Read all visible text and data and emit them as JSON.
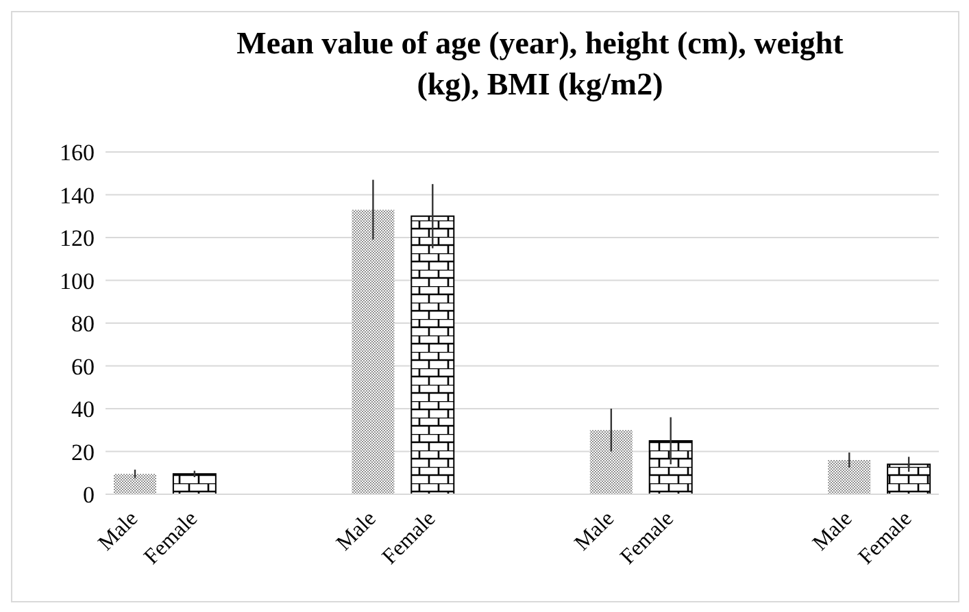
{
  "chart_data": {
    "type": "bar",
    "title": "Mean value of age (year), height (cm), weight (kg), BMI (kg/m2)",
    "categories": [
      "Male",
      "Female",
      null,
      null,
      "Male",
      "Female",
      null,
      null,
      "Male",
      "Female",
      null,
      null,
      "Male",
      "Female"
    ],
    "values": [
      9.5,
      9.5,
      null,
      null,
      133,
      130,
      null,
      null,
      30,
      25,
      null,
      null,
      16,
      14
    ],
    "errors": [
      2,
      1.5,
      null,
      null,
      14,
      15,
      null,
      null,
      10,
      11,
      null,
      null,
      3.5,
      3.5
    ],
    "colors": [
      "#909090",
      "#000000",
      null,
      null,
      "#909090",
      "#000000",
      null,
      null,
      "#909090",
      "#000000",
      null,
      null,
      "#909090",
      "#000000"
    ],
    "ylim": [
      0,
      160
    ],
    "yticks": [
      0,
      20,
      40,
      60,
      80,
      100,
      120,
      140,
      160
    ],
    "grid": "y"
  }
}
